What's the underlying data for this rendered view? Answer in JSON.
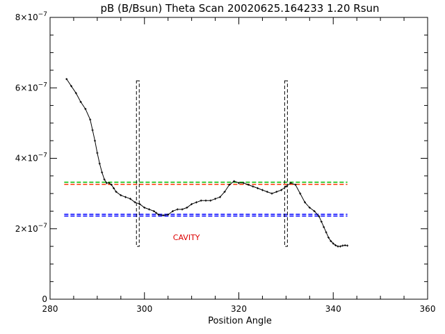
{
  "chart_data": {
    "type": "line",
    "title": "pB (B/Bsun) Theta Scan 20020625.164233 1.20 Rsun",
    "xlabel": "Position Angle",
    "ylabel": "",
    "xlim": [
      280,
      360
    ],
    "ylim": [
      0,
      8e-07
    ],
    "x_ticks": [
      280,
      300,
      320,
      340,
      360
    ],
    "x_tick_labels": [
      "280",
      "300",
      "320",
      "340",
      "360"
    ],
    "y_ticks": [
      0,
      2e-07,
      4e-07,
      6e-07,
      8e-07
    ],
    "y_tick_labels": [
      {
        "base": "0",
        "exp": ""
      },
      {
        "base": "2×10",
        "exp": "−7"
      },
      {
        "base": "4×10",
        "exp": "−7"
      },
      {
        "base": "6×10",
        "exp": "−7"
      },
      {
        "base": "8×10",
        "exp": "−7"
      }
    ],
    "grid": false,
    "series": [
      {
        "color": "#000000",
        "x": [
          283.5,
          284.5,
          285.5,
          286.5,
          287.5,
          288.5,
          289.0,
          289.5,
          290.0,
          290.5,
          291.0,
          291.5,
          292.0,
          292.5,
          293.0,
          293.5,
          294.0,
          295.0,
          296.0,
          297.0,
          298.0,
          299.0,
          300.0,
          301.0,
          302.0,
          302.5,
          303.0,
          304.0,
          305.0,
          306.0,
          307.0,
          308.0,
          309.0,
          310.0,
          311.0,
          312.0,
          313.0,
          314.0,
          315.0,
          316.0,
          317.0,
          318.0,
          319.0,
          320.0,
          321.0,
          322.0,
          323.0,
          324.0,
          325.0,
          326.0,
          327.0,
          328.0,
          329.0,
          330.0,
          331.0,
          332.0,
          333.0,
          334.0,
          335.0,
          336.0,
          337.0,
          337.5,
          338.0,
          338.5,
          339.0,
          339.5,
          340.0,
          340.5,
          341.0,
          341.5,
          342.0,
          342.5,
          343.0
        ],
        "y": [
          6.25e-07,
          6.05e-07,
          5.85e-07,
          5.6e-07,
          5.4e-07,
          5.1e-07,
          4.8e-07,
          4.5e-07,
          4.15e-07,
          3.85e-07,
          3.6e-07,
          3.4e-07,
          3.3e-07,
          3.3e-07,
          3.25e-07,
          3.15e-07,
          3.05e-07,
          2.95e-07,
          2.9e-07,
          2.85e-07,
          2.75e-07,
          2.7e-07,
          2.6e-07,
          2.55e-07,
          2.5e-07,
          2.45e-07,
          2.4e-07,
          2.38e-07,
          2.4e-07,
          2.5e-07,
          2.55e-07,
          2.55e-07,
          2.6e-07,
          2.7e-07,
          2.75e-07,
          2.8e-07,
          2.8e-07,
          2.8e-07,
          2.85e-07,
          2.9e-07,
          3.05e-07,
          3.25e-07,
          3.35e-07,
          3.3e-07,
          3.3e-07,
          3.25e-07,
          3.2e-07,
          3.15e-07,
          3.1e-07,
          3.05e-07,
          3e-07,
          3.05e-07,
          3.1e-07,
          3.2e-07,
          3.3e-07,
          3.25e-07,
          3e-07,
          2.75e-07,
          2.6e-07,
          2.5e-07,
          2.35e-07,
          2.2e-07,
          2.05e-07,
          1.9e-07,
          1.75e-07,
          1.65e-07,
          1.58e-07,
          1.53e-07,
          1.5e-07,
          1.5e-07,
          1.52e-07,
          1.53e-07,
          1.52e-07
        ]
      }
    ],
    "hlines": [
      {
        "y": 3.32e-07,
        "x_range": [
          283,
          343
        ],
        "color": "#00bb00",
        "style": "dashed"
      },
      {
        "y": 3.26e-07,
        "x_range": [
          283,
          343
        ],
        "color": "#ff3300",
        "style": "dashed"
      },
      {
        "y": 2.41e-07,
        "x_range": [
          283,
          343
        ],
        "color": "#0000ff",
        "style": "dashed"
      },
      {
        "y": 2.36e-07,
        "x_range": [
          283,
          343
        ],
        "color": "#0000ff",
        "style": "dashed"
      }
    ],
    "vboxes": [
      {
        "x": 298.6,
        "y_range": [
          1.5e-07,
          6.2e-07
        ],
        "color": "#000000",
        "style": "dashed"
      },
      {
        "x": 330.0,
        "y_range": [
          1.5e-07,
          6.2e-07
        ],
        "color": "#000000",
        "style": "dashed"
      }
    ],
    "annotations": [
      {
        "text": "CAVITY",
        "x": 308.9,
        "y": 1.68e-07,
        "color": "#dd0000"
      }
    ]
  }
}
